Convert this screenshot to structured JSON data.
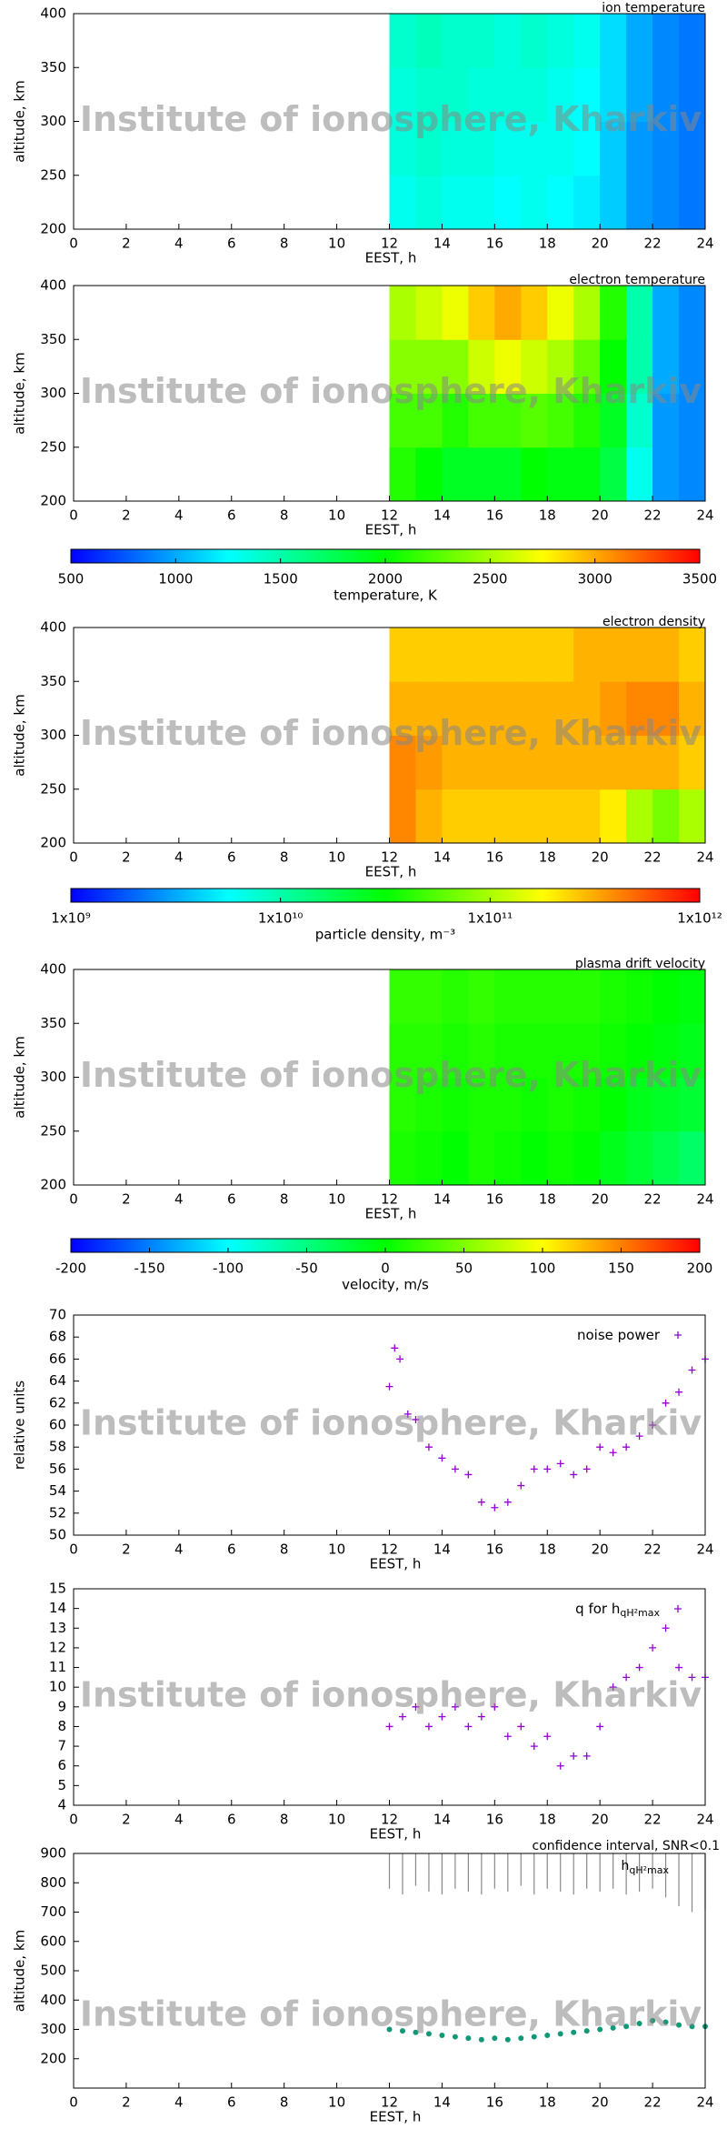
{
  "watermark": "Institute of ionosphere, Kharkiv",
  "chart_data": [
    {
      "type": "heatmap",
      "title": "ion temperature",
      "xlabel": "EEST, h",
      "ylabel": "altitude, km",
      "xlim": [
        0,
        24
      ],
      "xticks": [
        0,
        2,
        4,
        6,
        8,
        10,
        12,
        14,
        16,
        18,
        20,
        22,
        24
      ],
      "ylim": [
        200,
        400
      ],
      "yticks": [
        200,
        250,
        300,
        350,
        400
      ],
      "xbins": [
        12,
        13,
        14,
        15,
        16,
        17,
        18,
        19,
        20,
        21,
        22,
        23,
        24
      ],
      "ybins": [
        200,
        250,
        300,
        350,
        400
      ],
      "zlim": [
        500,
        3500
      ],
      "colormap": [
        "#0000ff",
        "#00ffff",
        "#00ff00",
        "#ffff00",
        "#ff0000"
      ],
      "values": [
        [
          1300,
          1350,
          1300,
          1300,
          1250,
          1300,
          1250,
          1200,
          1100,
          950,
          900,
          850
        ],
        [
          1350,
          1400,
          1350,
          1350,
          1300,
          1300,
          1300,
          1250,
          1100,
          950,
          900,
          850
        ],
        [
          1350,
          1400,
          1400,
          1350,
          1350,
          1350,
          1300,
          1250,
          1150,
          1000,
          900,
          850
        ],
        [
          1400,
          1450,
          1400,
          1400,
          1350,
          1400,
          1350,
          1300,
          1150,
          1000,
          900,
          850
        ]
      ]
    },
    {
      "type": "heatmap",
      "title": "electron temperature",
      "xlabel": "EEST, h",
      "ylabel": "altitude, km",
      "xlim": [
        0,
        24
      ],
      "xticks": [
        0,
        2,
        4,
        6,
        8,
        10,
        12,
        14,
        16,
        18,
        20,
        22,
        24
      ],
      "ylim": [
        200,
        400
      ],
      "yticks": [
        200,
        250,
        300,
        350,
        400
      ],
      "xbins": [
        12,
        13,
        14,
        15,
        16,
        17,
        18,
        19,
        20,
        21,
        22,
        23,
        24
      ],
      "ybins": [
        200,
        250,
        300,
        350,
        400
      ],
      "zlim": [
        500,
        3500
      ],
      "colormap": [
        "#0000ff",
        "#00ffff",
        "#00ff00",
        "#ffff00",
        "#ff0000"
      ],
      "values": [
        [
          2100,
          2000,
          1900,
          1900,
          1900,
          2000,
          1950,
          1950,
          1800,
          1300,
          950,
          900
        ],
        [
          2200,
          2200,
          2100,
          2200,
          2200,
          2250,
          2200,
          2100,
          1900,
          1400,
          950,
          900
        ],
        [
          2400,
          2400,
          2400,
          2600,
          2700,
          2600,
          2500,
          2300,
          2000,
          1500,
          1000,
          900
        ],
        [
          2500,
          2600,
          2700,
          2900,
          3000,
          2900,
          2700,
          2500,
          2100,
          1500,
          1000,
          900
        ]
      ],
      "colorbar": {
        "label": "temperature, K",
        "ticks": [
          500,
          1000,
          1500,
          2000,
          2500,
          3000,
          3500
        ]
      }
    },
    {
      "type": "heatmap",
      "title": "electron density",
      "xlabel": "EEST, h",
      "ylabel": "altitude, km",
      "xlim": [
        0,
        24
      ],
      "xticks": [
        0,
        2,
        4,
        6,
        8,
        10,
        12,
        14,
        16,
        18,
        20,
        22,
        24
      ],
      "ylim": [
        200,
        400
      ],
      "yticks": [
        200,
        250,
        300,
        350,
        400
      ],
      "xbins": [
        12,
        13,
        14,
        15,
        16,
        17,
        18,
        19,
        20,
        21,
        22,
        23,
        24
      ],
      "ybins": [
        200,
        250,
        300,
        350,
        400
      ],
      "zlim": [
        1000000000.0,
        1000000000000.0
      ],
      "zlog": true,
      "colormap": [
        "#0000ff",
        "#00ffff",
        "#00ff00",
        "#ffff00",
        "#ff0000"
      ],
      "values": [
        [
          400000000000.0,
          300000000000.0,
          250000000000.0,
          250000000000.0,
          250000000000.0,
          250000000000.0,
          250000000000.0,
          250000000000.0,
          200000000000.0,
          100000000000.0,
          70000000000.0,
          100000000000.0
        ],
        [
          400000000000.0,
          350000000000.0,
          300000000000.0,
          300000000000.0,
          300000000000.0,
          300000000000.0,
          300000000000.0,
          300000000000.0,
          300000000000.0,
          300000000000.0,
          300000000000.0,
          250000000000.0
        ],
        [
          300000000000.0,
          300000000000.0,
          300000000000.0,
          300000000000.0,
          300000000000.0,
          300000000000.0,
          300000000000.0,
          300000000000.0,
          350000000000.0,
          400000000000.0,
          400000000000.0,
          300000000000.0
        ],
        [
          250000000000.0,
          250000000000.0,
          250000000000.0,
          250000000000.0,
          250000000000.0,
          250000000000.0,
          250000000000.0,
          300000000000.0,
          300000000000.0,
          300000000000.0,
          300000000000.0,
          250000000000.0
        ]
      ],
      "colorbar": {
        "label": "particle density, m⁻³",
        "ticks": [
          {
            "value": 1000000000.0,
            "label": "1x10⁹"
          },
          {
            "value": 10000000000.0,
            "label": "1x10¹⁰"
          },
          {
            "value": 100000000000.0,
            "label": "1x10¹¹"
          },
          {
            "value": 1000000000000.0,
            "label": "1x10¹²"
          }
        ]
      }
    },
    {
      "type": "heatmap",
      "title": "plasma drift velocity",
      "xlabel": "EEST, h",
      "ylabel": "altitude, km",
      "xlim": [
        0,
        24
      ],
      "xticks": [
        0,
        2,
        4,
        6,
        8,
        10,
        12,
        14,
        16,
        18,
        20,
        22,
        24
      ],
      "ylim": [
        200,
        400
      ],
      "yticks": [
        200,
        250,
        300,
        350,
        400
      ],
      "xbins": [
        12,
        13,
        14,
        15,
        16,
        17,
        18,
        19,
        20,
        21,
        22,
        23,
        24
      ],
      "ybins": [
        200,
        250,
        300,
        350,
        400
      ],
      "zlim": [
        -200,
        200
      ],
      "colormap": [
        "#0000ff",
        "#00ffff",
        "#00ff00",
        "#ffff00",
        "#ff0000"
      ],
      "values": [
        [
          10,
          5,
          0,
          10,
          5,
          0,
          5,
          0,
          -10,
          -20,
          -30,
          -40
        ],
        [
          15,
          10,
          5,
          10,
          10,
          5,
          10,
          5,
          0,
          -10,
          -15,
          -20
        ],
        [
          15,
          15,
          10,
          15,
          10,
          10,
          10,
          10,
          5,
          0,
          -5,
          -10
        ],
        [
          20,
          20,
          15,
          20,
          15,
          15,
          15,
          15,
          10,
          5,
          0,
          -5
        ]
      ],
      "colorbar": {
        "label": "velocity, m/s",
        "ticks": [
          -200,
          -150,
          -100,
          -50,
          0,
          50,
          100,
          150,
          200
        ]
      }
    },
    {
      "type": "scatter",
      "xlabel": "EEST, h",
      "ylabel": "relative units",
      "xlim": [
        0,
        24
      ],
      "xticks": [
        0,
        2,
        4,
        6,
        8,
        10,
        12,
        14,
        16,
        18,
        20,
        22,
        24
      ],
      "ylim": [
        50,
        70
      ],
      "yticks": [
        50,
        52,
        54,
        56,
        58,
        60,
        62,
        64,
        66,
        68,
        70
      ],
      "series": [
        {
          "name": "noise power",
          "color": "#9400d3",
          "x": [
            12,
            12.2,
            12.4,
            12.7,
            13,
            13.5,
            14,
            14.5,
            15,
            15.5,
            16,
            16.5,
            17,
            17.5,
            18,
            18.5,
            19,
            19.5,
            20,
            20.5,
            21,
            21.5,
            22,
            22.5,
            23,
            23.5,
            24
          ],
          "values": [
            63.5,
            67,
            66,
            61,
            60.5,
            58,
            57,
            56,
            55.5,
            53,
            52.5,
            53,
            54.5,
            56,
            56,
            56.5,
            55.5,
            56,
            58,
            57.5,
            58,
            59,
            60,
            62,
            63,
            65,
            66
          ]
        }
      ]
    },
    {
      "type": "scatter",
      "xlabel": "EEST, h",
      "xlim": [
        0,
        24
      ],
      "xticks": [
        0,
        2,
        4,
        6,
        8,
        10,
        12,
        14,
        16,
        18,
        20,
        22,
        24
      ],
      "ylim": [
        4,
        15
      ],
      "yticks": [
        4,
        5,
        6,
        7,
        8,
        9,
        10,
        11,
        12,
        13,
        14,
        15
      ],
      "series": [
        {
          "name": "q for h",
          "subscript": "qH²max",
          "color": "#9400d3",
          "x": [
            12,
            12.5,
            13,
            13.5,
            14,
            14.5,
            15,
            15.5,
            16,
            16.5,
            17,
            17.5,
            18,
            18.5,
            19,
            19.5,
            20,
            20.5,
            21,
            21.5,
            22,
            22.5,
            23,
            23.5,
            24
          ],
          "values": [
            8,
            8.5,
            9,
            8,
            8.5,
            9,
            8,
            8.5,
            9,
            7.5,
            8,
            7,
            7.5,
            6,
            6.5,
            6.5,
            8,
            10,
            10.5,
            11,
            12,
            13,
            11,
            10.5,
            10.5
          ]
        }
      ]
    },
    {
      "type": "intervals",
      "xlabel": "EEST, h",
      "ylabel": "altitude, km",
      "xlim": [
        0,
        24
      ],
      "xticks": [
        0,
        2,
        4,
        6,
        8,
        10,
        12,
        14,
        16,
        18,
        20,
        22,
        24
      ],
      "ylim": [
        100,
        900
      ],
      "yticks": [
        200,
        300,
        400,
        500,
        600,
        700,
        800,
        900
      ],
      "x": [
        12,
        12.5,
        13,
        13.5,
        14,
        14.5,
        15,
        15.5,
        16,
        16.5,
        17,
        17.5,
        18,
        18.5,
        19,
        19.5,
        20,
        20.5,
        21,
        21.5,
        22,
        22.5,
        23,
        23.5,
        24
      ],
      "series": [
        {
          "name": "confidence interval, SNR<0.1",
          "color": "#888888",
          "low": [
            780,
            760,
            790,
            770,
            760,
            780,
            770,
            760,
            780,
            770,
            790,
            760,
            780,
            770,
            760,
            780,
            770,
            780,
            760,
            770,
            780,
            750,
            720,
            700,
            710
          ],
          "high": [
            900,
            900,
            900,
            900,
            900,
            900,
            900,
            900,
            900,
            900,
            900,
            900,
            900,
            900,
            900,
            900,
            900,
            900,
            900,
            900,
            900,
            900,
            900,
            900,
            900
          ]
        },
        {
          "name": "h",
          "subscript": "qH²max",
          "color": "#119977",
          "values": [
            300,
            295,
            290,
            285,
            280,
            275,
            270,
            265,
            270,
            265,
            270,
            275,
            280,
            285,
            290,
            295,
            300,
            305,
            310,
            320,
            330,
            325,
            315,
            310,
            310
          ]
        }
      ]
    }
  ]
}
